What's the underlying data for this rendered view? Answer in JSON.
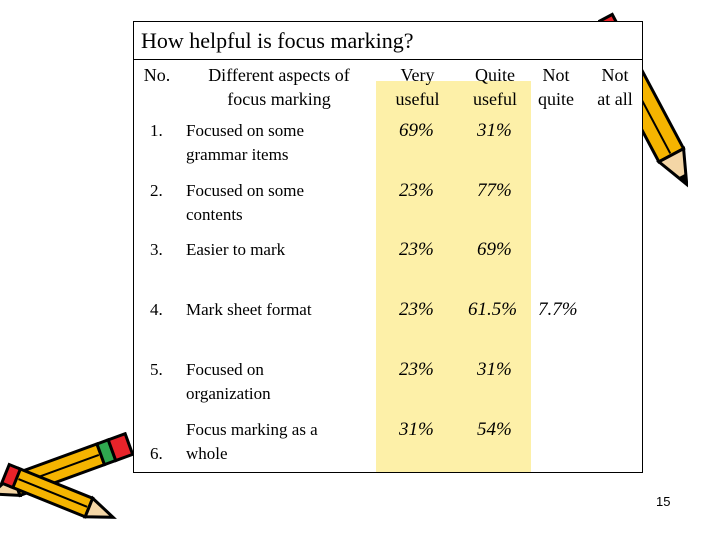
{
  "slide": {
    "title": "How helpful is focus marking?",
    "page_number": "15"
  },
  "table": {
    "headers": {
      "no": "No.",
      "aspect_line1": "Different aspects of",
      "aspect_line2": "focus marking",
      "very_line1": "Very",
      "very_line2": "useful",
      "quite_line1": "Quite",
      "quite_line2": "useful",
      "notquite_line1": "Not",
      "notquite_line2": "quite",
      "notatall_line1": "Not",
      "notatall_line2": "at all"
    },
    "rows": [
      {
        "no": "1.",
        "aspect_line1": "Focused on some",
        "aspect_line2": "grammar items",
        "very": "69%",
        "quite": "31%",
        "not_quite": "",
        "not_at_all": ""
      },
      {
        "no": "2.",
        "aspect_line1": "Focused on some",
        "aspect_line2": "contents",
        "very": "23%",
        "quite": "77%",
        "not_quite": "",
        "not_at_all": ""
      },
      {
        "no": "3.",
        "aspect_line1": "Easier to mark",
        "aspect_line2": "",
        "very": "23%",
        "quite": "69%",
        "not_quite": "",
        "not_at_all": ""
      },
      {
        "no": "4.",
        "aspect_line1": "Mark sheet format",
        "aspect_line2": "",
        "very": "23%",
        "quite": "61.5%",
        "not_quite": "7.7%",
        "not_at_all": ""
      },
      {
        "no": "5.",
        "aspect_line1": "Focused on",
        "aspect_line2": "organization",
        "very": "23%",
        "quite": "31%",
        "not_quite": "",
        "not_at_all": ""
      },
      {
        "no": "6.",
        "aspect_line1": "Focus marking as a",
        "aspect_line2": "whole",
        "very": "31%",
        "quite": "54%",
        "not_quite": "",
        "not_at_all": ""
      }
    ]
  },
  "colors": {
    "highlight": "#fdf0a8",
    "pencil_body": "#f5b400",
    "pencil_eraser": "#e8232a",
    "pencil_band": "#2fa84f"
  },
  "icons": [
    "pencil-icon",
    "pencil-icon",
    "pencil-icon"
  ]
}
